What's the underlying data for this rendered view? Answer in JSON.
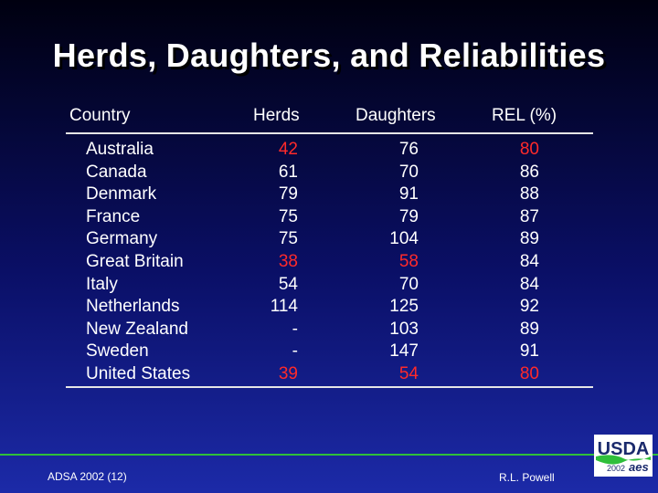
{
  "title": "Herds, Daughters, and Reliabilities",
  "headers": {
    "country": "Country",
    "herds": "Herds",
    "daughters": "Daughters",
    "rel": "REL (%)"
  },
  "rows": [
    {
      "country": "Australia",
      "herds": "42",
      "daughters": "76",
      "rel": "80",
      "herds_red": true,
      "daughters_red": false,
      "rel_red": true
    },
    {
      "country": "Canada",
      "herds": "61",
      "daughters": "70",
      "rel": "86",
      "herds_red": false,
      "daughters_red": false,
      "rel_red": false
    },
    {
      "country": "Denmark",
      "herds": "79",
      "daughters": "91",
      "rel": "88",
      "herds_red": false,
      "daughters_red": false,
      "rel_red": false
    },
    {
      "country": "France",
      "herds": "75",
      "daughters": "79",
      "rel": "87",
      "herds_red": false,
      "daughters_red": false,
      "rel_red": false
    },
    {
      "country": "Germany",
      "herds": "75",
      "daughters": "104",
      "rel": "89",
      "herds_red": false,
      "daughters_red": false,
      "rel_red": false
    },
    {
      "country": "Great Britain",
      "herds": "38",
      "daughters": "58",
      "rel": "84",
      "herds_red": true,
      "daughters_red": true,
      "rel_red": false
    },
    {
      "country": "Italy",
      "herds": "54",
      "daughters": "70",
      "rel": "84",
      "herds_red": false,
      "daughters_red": false,
      "rel_red": false
    },
    {
      "country": "Netherlands",
      "herds": "114",
      "daughters": "125",
      "rel": "92",
      "herds_red": false,
      "daughters_red": false,
      "rel_red": false
    },
    {
      "country": "New Zealand",
      "herds": "-",
      "daughters": "103",
      "rel": "89",
      "herds_red": false,
      "daughters_red": false,
      "rel_red": false
    },
    {
      "country": "Sweden",
      "herds": "-",
      "daughters": "147",
      "rel": "91",
      "herds_red": false,
      "daughters_red": false,
      "rel_red": false
    },
    {
      "country": "United States",
      "herds": "39",
      "daughters": "54",
      "rel": "80",
      "herds_red": true,
      "daughters_red": true,
      "rel_red": true
    }
  ],
  "footer": {
    "left": "ADSA 2002 (12)",
    "right": "R.L. Powell"
  },
  "logo": {
    "text": "USDA",
    "year": "2002",
    "mark": "aes",
    "icon": "usda-logo-icon"
  },
  "colors": {
    "highlight": "#ff2a2a",
    "text": "#ffffff",
    "accent_line": "#2fbf3a"
  }
}
